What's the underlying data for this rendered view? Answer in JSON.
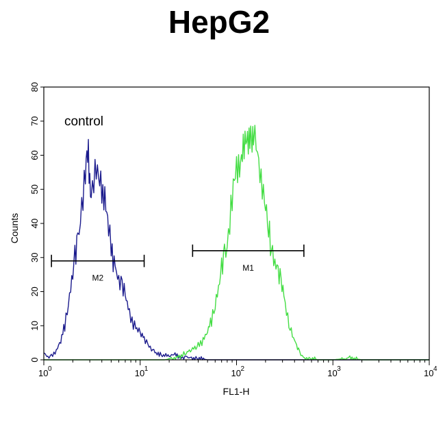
{
  "chart_data": {
    "type": "line",
    "title": "HepG2",
    "xlabel": "FL1-H",
    "ylabel": "Counts",
    "x_scale": "log",
    "xlim": [
      1,
      10000
    ],
    "ylim": [
      0,
      80
    ],
    "x_ticks": [
      {
        "value": 1,
        "base": "10",
        "exp": "0"
      },
      {
        "value": 10,
        "base": "10",
        "exp": "1"
      },
      {
        "value": 100,
        "base": "10",
        "exp": "2"
      },
      {
        "value": 1000,
        "base": "10",
        "exp": "3"
      },
      {
        "value": 10000,
        "base": "10",
        "exp": "4"
      }
    ],
    "y_ticks": [
      0,
      10,
      20,
      30,
      40,
      50,
      60,
      70,
      80
    ],
    "grid": false,
    "annotation": "control",
    "series": [
      {
        "color": "#1a1a8c",
        "points": [
          [
            1.0,
            2
          ],
          [
            1.1,
            0.5
          ],
          [
            1.2,
            1
          ],
          [
            1.35,
            3
          ],
          [
            1.5,
            6
          ],
          [
            1.65,
            10
          ],
          [
            1.8,
            16
          ],
          [
            1.95,
            22
          ],
          [
            2.1,
            30
          ],
          [
            2.25,
            37
          ],
          [
            2.4,
            44
          ],
          [
            2.55,
            48
          ],
          [
            2.7,
            52
          ],
          [
            2.8,
            58
          ],
          [
            2.9,
            61
          ],
          [
            3.0,
            54
          ],
          [
            3.1,
            50
          ],
          [
            3.3,
            52
          ],
          [
            3.5,
            54
          ],
          [
            3.7,
            52
          ],
          [
            3.9,
            53
          ],
          [
            4.1,
            50
          ],
          [
            4.4,
            44
          ],
          [
            4.7,
            38
          ],
          [
            5.0,
            32
          ],
          [
            5.5,
            28
          ],
          [
            6.0,
            24
          ],
          [
            6.5,
            22
          ],
          [
            7.0,
            18
          ],
          [
            7.5,
            15
          ],
          [
            8.0,
            12
          ],
          [
            9.0,
            10
          ],
          [
            10.0,
            8
          ],
          [
            11.0,
            6
          ],
          [
            12.0,
            4
          ],
          [
            13.5,
            3
          ],
          [
            15.0,
            2
          ],
          [
            17.0,
            1.5
          ],
          [
            20.0,
            1
          ],
          [
            23.0,
            1.5
          ],
          [
            26.0,
            0.5
          ],
          [
            30.0,
            1
          ],
          [
            35.0,
            0.5
          ],
          [
            40.0,
            0.5
          ],
          [
            50.0,
            0
          ],
          [
            100.0,
            0
          ],
          [
            300.0,
            0
          ],
          [
            1000.0,
            0
          ],
          [
            10000.0,
            0
          ]
        ]
      },
      {
        "color": "#44dd44",
        "points": [
          [
            1.0,
            0
          ],
          [
            5.0,
            0
          ],
          [
            10.0,
            0
          ],
          [
            18.0,
            0
          ],
          [
            22.0,
            0.5
          ],
          [
            26.0,
            1
          ],
          [
            30.0,
            2
          ],
          [
            35.0,
            3
          ],
          [
            40.0,
            4
          ],
          [
            45.0,
            6
          ],
          [
            50.0,
            9
          ],
          [
            55.0,
            12
          ],
          [
            60.0,
            16
          ],
          [
            65.0,
            20
          ],
          [
            70.0,
            26
          ],
          [
            75.0,
            32
          ],
          [
            80.0,
            36
          ],
          [
            85.0,
            42
          ],
          [
            90.0,
            46
          ],
          [
            95.0,
            50
          ],
          [
            100.0,
            55
          ],
          [
            105.0,
            58
          ],
          [
            110.0,
            60
          ],
          [
            115.0,
            62
          ],
          [
            120.0,
            61
          ],
          [
            125.0,
            62
          ],
          [
            130.0,
            64
          ],
          [
            135.0,
            66
          ],
          [
            140.0,
            69
          ],
          [
            145.0,
            63
          ],
          [
            150.0,
            65
          ],
          [
            160.0,
            62
          ],
          [
            170.0,
            58
          ],
          [
            180.0,
            54
          ],
          [
            190.0,
            50
          ],
          [
            200.0,
            44
          ],
          [
            215.0,
            38
          ],
          [
            230.0,
            34
          ],
          [
            250.0,
            30
          ],
          [
            270.0,
            26
          ],
          [
            290.0,
            22
          ],
          [
            310.0,
            18
          ],
          [
            330.0,
            14
          ],
          [
            360.0,
            10
          ],
          [
            390.0,
            7
          ],
          [
            420.0,
            4
          ],
          [
            450.0,
            2
          ],
          [
            480.0,
            1
          ],
          [
            520.0,
            0.5
          ],
          [
            600.0,
            0.5
          ],
          [
            700.0,
            0
          ],
          [
            1000.0,
            0
          ],
          [
            1500.0,
            0.5
          ],
          [
            2000.0,
            0
          ],
          [
            10000.0,
            0
          ]
        ]
      }
    ],
    "gates": [
      {
        "label": "M2",
        "x_start": 1.2,
        "x_end": 11,
        "y": 29
      },
      {
        "label": "M1",
        "x_start": 35,
        "x_end": 500,
        "y": 32
      }
    ]
  }
}
